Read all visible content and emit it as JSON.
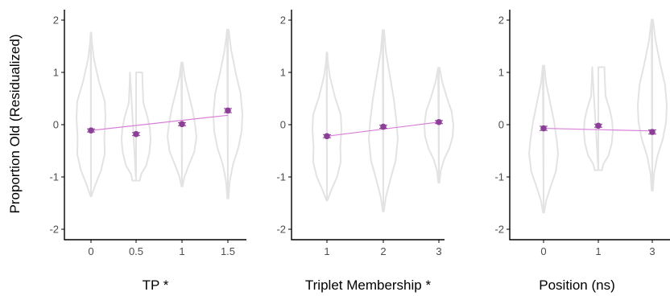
{
  "ylabel": "Proportion Old (Residualized)",
  "colors": {
    "violin": "#e3e3e3",
    "point": "#8c3f96",
    "fit_line": "#d97fd9",
    "axis": "#000000",
    "tick_text": "#4d4d4d"
  },
  "chart_data": [
    {
      "type": "violin",
      "xlabel": "TP *",
      "categories": [
        "0",
        "0.5",
        "1",
        "1.5"
      ],
      "x": [
        0,
        0.5,
        1,
        1.5
      ],
      "means": [
        -0.11,
        -0.18,
        0.01,
        0.27
      ],
      "se": [
        0.03,
        0.03,
        0.03,
        0.04
      ],
      "fit": {
        "x": [
          0,
          1.5
        ],
        "y": [
          -0.11,
          0.18
        ]
      },
      "violin_range": [
        [
          -1.37,
          1.76
        ],
        [
          -1.07,
          1.0
        ],
        [
          -1.18,
          1.19
        ],
        [
          -1.41,
          1.82
        ]
      ],
      "ylim": [
        -2.2,
        2.2
      ],
      "yticks": [
        -2,
        -1,
        0,
        1,
        2
      ],
      "grid": false
    },
    {
      "type": "violin",
      "xlabel": "Triplet Membership *",
      "categories": [
        "1",
        "2",
        "3"
      ],
      "x": [
        1,
        2,
        3
      ],
      "means": [
        -0.22,
        -0.04,
        0.05
      ],
      "se": [
        0.03,
        0.03,
        0.03
      ],
      "fit": {
        "x": [
          1,
          3
        ],
        "y": [
          -0.22,
          0.05
        ]
      },
      "violin_range": [
        [
          -1.45,
          1.38
        ],
        [
          -1.66,
          1.81
        ],
        [
          -1.11,
          1.09
        ]
      ],
      "ylim": [
        -2.2,
        2.2
      ],
      "yticks": [
        -2,
        -1,
        0,
        1,
        2
      ],
      "grid": false
    },
    {
      "type": "violin",
      "xlabel": "Position (ns)",
      "categories": [
        "0",
        "1",
        "3"
      ],
      "x": [
        0,
        1,
        2
      ],
      "means": [
        -0.07,
        -0.02,
        -0.14
      ],
      "se": [
        0.04,
        0.03,
        0.04
      ],
      "fit": {
        "x": [
          0,
          2
        ],
        "y": [
          -0.07,
          -0.12
        ]
      },
      "violin_range": [
        [
          -1.68,
          1.13
        ],
        [
          -0.87,
          1.1
        ],
        [
          -1.26,
          2.01
        ]
      ],
      "ylim": [
        -2.2,
        2.2
      ],
      "yticks": [
        -2,
        -1,
        0,
        1,
        2
      ],
      "grid": false
    }
  ]
}
